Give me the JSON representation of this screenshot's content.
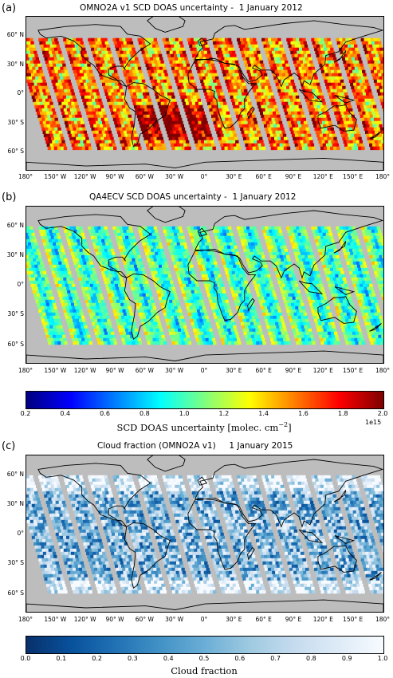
{
  "panels": [
    {
      "label": "(a)",
      "title": "OMNO2A v1 SCD DOAS uncertainty -  1 January 2012",
      "palette": "jet",
      "mean": 0.62,
      "spread": 0.28,
      "swath_lat_top": 58,
      "swath_lat_bottom": -57
    },
    {
      "label": "(b)",
      "title": "QA4ECV SCD DOAS uncertainty -  1 January 2012",
      "palette": "jet",
      "mean": 0.33,
      "spread": 0.16,
      "swath_lat_top": 60,
      "swath_lat_bottom": -58
    },
    {
      "label": "(c)",
      "title": "Cloud fraction (OMNO2A v1)     1 January 2015",
      "palette": "blues",
      "mean": 0.55,
      "spread": 0.35,
      "swath_lat_top": 60,
      "swath_lat_bottom": -58
    }
  ],
  "lat_labels": [
    "60° N",
    "30° N",
    "0°",
    "30° S",
    "60° S"
  ],
  "lat_values": [
    60,
    30,
    0,
    -30,
    -60
  ],
  "lon_labels": [
    "180°",
    "150° W",
    "120° W",
    "90° W",
    "60° W",
    "30° W",
    "0°",
    "30° E",
    "60° E",
    "90° E",
    "120° E",
    "150° E",
    "180°"
  ],
  "lon_values": [
    -180,
    -150,
    -120,
    -90,
    -60,
    -30,
    0,
    30,
    60,
    90,
    120,
    150,
    180
  ],
  "map_lat_range": [
    -78,
    80
  ],
  "colorbar_doas": {
    "ticks": [
      "0.2",
      "0.4",
      "0.6",
      "0.8",
      "1.0",
      "1.2",
      "1.4",
      "1.6",
      "1.8",
      "2.0"
    ],
    "range": [
      0.2,
      2.0
    ],
    "exponent": "1e15",
    "title": "SCD  DOAS  uncertainty  [molec. cm",
    "title_sup": "−2",
    "title_end": "]",
    "colors": [
      "#00007f",
      "#0000ff",
      "#007fff",
      "#00ffff",
      "#7fff7f",
      "#ffff00",
      "#ff7f00",
      "#ff0000",
      "#7f0000"
    ]
  },
  "colorbar_cloud": {
    "ticks": [
      "0.0",
      "0.1",
      "0.2",
      "0.3",
      "0.4",
      "0.5",
      "0.6",
      "0.7",
      "0.8",
      "0.9",
      "1.0"
    ],
    "range": [
      0.0,
      1.0
    ],
    "title": "Cloud  fraction",
    "colors": [
      "#08306b",
      "#08519c",
      "#2171b5",
      "#4292c6",
      "#6baed6",
      "#9ecae1",
      "#c6dbef",
      "#deebf7",
      "#f7fbff"
    ]
  }
}
